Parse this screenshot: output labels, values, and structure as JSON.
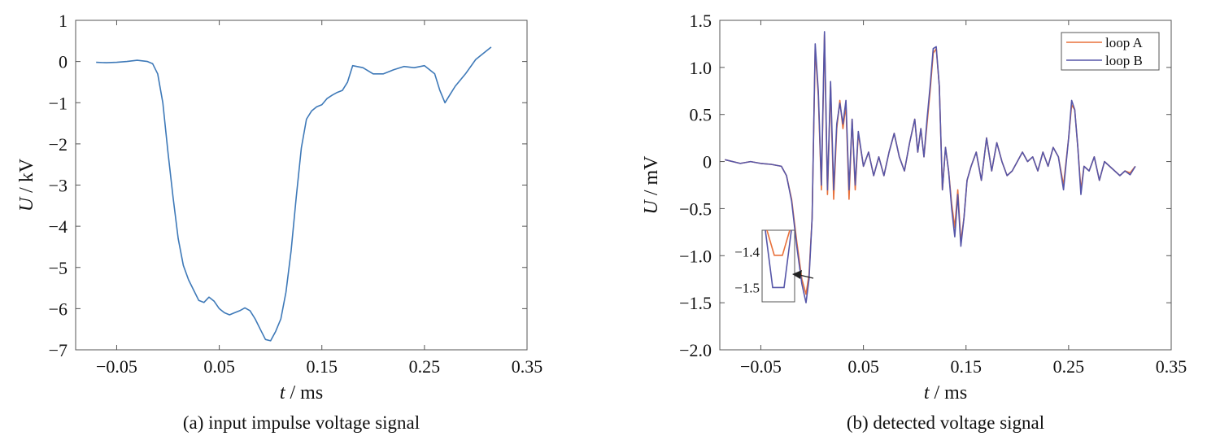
{
  "chart_data": [
    {
      "type": "line",
      "caption": "(a) input impulse voltage signal",
      "xlabel_var": "t",
      "xlabel_unit": " / ms",
      "ylabel_var": "U",
      "ylabel_unit": " / kV",
      "xlim": [
        -0.09,
        0.35
      ],
      "ylim": [
        -7,
        1
      ],
      "xticks": [
        -0.05,
        0.05,
        0.15,
        0.25,
        0.35
      ],
      "xtick_labels": [
        "−0.05",
        "0.05",
        "0.15",
        "0.25",
        "0.35"
      ],
      "yticks": [
        1,
        0,
        -1,
        -2,
        -3,
        -4,
        -5,
        -6,
        -7
      ],
      "ytick_labels": [
        "1",
        "0",
        "−1",
        "−2",
        "−3",
        "−4",
        "−5",
        "−6",
        "−7"
      ],
      "grid": false,
      "series": [
        {
          "color": "#3e79b8",
          "x": [
            -0.07,
            -0.06,
            -0.05,
            -0.04,
            -0.03,
            -0.02,
            -0.015,
            -0.01,
            -0.005,
            0.0,
            0.005,
            0.01,
            0.015,
            0.02,
            0.025,
            0.03,
            0.035,
            0.04,
            0.045,
            0.05,
            0.055,
            0.06,
            0.065,
            0.07,
            0.075,
            0.08,
            0.085,
            0.09,
            0.095,
            0.1,
            0.105,
            0.11,
            0.115,
            0.12,
            0.125,
            0.13,
            0.135,
            0.14,
            0.145,
            0.15,
            0.155,
            0.16,
            0.165,
            0.17,
            0.175,
            0.18,
            0.19,
            0.2,
            0.21,
            0.22,
            0.23,
            0.24,
            0.25,
            0.26,
            0.265,
            0.27,
            0.275,
            0.28,
            0.29,
            0.3,
            0.31,
            0.315
          ],
          "values": [
            -0.02,
            -0.03,
            -0.02,
            0.0,
            0.03,
            0.0,
            -0.05,
            -0.3,
            -1.0,
            -2.2,
            -3.3,
            -4.3,
            -4.95,
            -5.3,
            -5.55,
            -5.8,
            -5.85,
            -5.72,
            -5.82,
            -6.0,
            -6.1,
            -6.15,
            -6.1,
            -6.05,
            -5.98,
            -6.05,
            -6.25,
            -6.5,
            -6.75,
            -6.78,
            -6.55,
            -6.25,
            -5.6,
            -4.6,
            -3.3,
            -2.1,
            -1.4,
            -1.2,
            -1.1,
            -1.05,
            -0.9,
            -0.82,
            -0.75,
            -0.7,
            -0.5,
            -0.1,
            -0.15,
            -0.3,
            -0.3,
            -0.2,
            -0.12,
            -0.15,
            -0.1,
            -0.3,
            -0.7,
            -1.0,
            -0.8,
            -0.6,
            -0.3,
            0.05,
            0.25,
            0.35
          ]
        }
      ]
    },
    {
      "type": "line",
      "caption": "(b) detected voltage signal",
      "xlabel_var": "t",
      "xlabel_unit": " / ms",
      "ylabel_var": "U",
      "ylabel_unit": " / mV",
      "xlim": [
        -0.09,
        0.35
      ],
      "ylim": [
        -2.0,
        1.5
      ],
      "xticks": [
        -0.05,
        0.05,
        0.15,
        0.25,
        0.35
      ],
      "xtick_labels": [
        "−0.05",
        "0.05",
        "0.15",
        "0.25",
        "0.35"
      ],
      "yticks": [
        1.5,
        1.0,
        0.5,
        0,
        -0.5,
        -1.0,
        -1.5,
        -2.0
      ],
      "ytick_labels": [
        "1.5",
        "1.0",
        "0.5",
        "0",
        "−0.5",
        "−1.0",
        "−1.5",
        "−2.0"
      ],
      "grid": false,
      "legend_position": "top-right",
      "inset": {
        "ytick_labels": [
          "−1.4",
          "−1.5"
        ],
        "yticks": [
          -1.4,
          -1.5
        ],
        "ylim": [
          -1.34,
          -1.54
        ],
        "series_min": [
          -1.41,
          -1.5
        ]
      },
      "series": [
        {
          "name": "loop A",
          "color": "#e8703a",
          "x": [
            -0.085,
            -0.07,
            -0.06,
            -0.05,
            -0.04,
            -0.03,
            -0.025,
            -0.02,
            -0.015,
            -0.01,
            -0.006,
            -0.003,
            0.0,
            0.003,
            0.006,
            0.009,
            0.012,
            0.015,
            0.018,
            0.021,
            0.024,
            0.027,
            0.03,
            0.033,
            0.036,
            0.039,
            0.042,
            0.045,
            0.05,
            0.055,
            0.06,
            0.065,
            0.07,
            0.075,
            0.08,
            0.085,
            0.09,
            0.095,
            0.1,
            0.103,
            0.106,
            0.109,
            0.112,
            0.115,
            0.118,
            0.121,
            0.124,
            0.127,
            0.13,
            0.133,
            0.136,
            0.139,
            0.142,
            0.145,
            0.148,
            0.151,
            0.155,
            0.16,
            0.165,
            0.17,
            0.175,
            0.18,
            0.185,
            0.19,
            0.195,
            0.2,
            0.205,
            0.21,
            0.215,
            0.22,
            0.225,
            0.23,
            0.235,
            0.24,
            0.245,
            0.25,
            0.253,
            0.256,
            0.259,
            0.262,
            0.265,
            0.27,
            0.275,
            0.28,
            0.285,
            0.29,
            0.295,
            0.3,
            0.305,
            0.31,
            0.315
          ],
          "values": [
            0.02,
            -0.02,
            0.0,
            -0.02,
            -0.03,
            -0.05,
            -0.15,
            -0.4,
            -0.85,
            -1.25,
            -1.41,
            -1.2,
            -0.6,
            1.2,
            0.7,
            -0.3,
            1.35,
            -0.35,
            0.8,
            -0.4,
            0.35,
            0.65,
            0.35,
            0.6,
            -0.4,
            0.45,
            -0.3,
            0.3,
            -0.05,
            0.1,
            -0.15,
            0.05,
            -0.15,
            0.1,
            0.3,
            0.05,
            -0.1,
            0.2,
            0.45,
            0.1,
            0.35,
            0.05,
            0.4,
            0.75,
            1.15,
            1.2,
            0.8,
            -0.3,
            0.15,
            -0.1,
            -0.45,
            -0.7,
            -0.3,
            -0.85,
            -0.6,
            -0.2,
            -0.05,
            0.1,
            -0.2,
            0.25,
            -0.1,
            0.2,
            0.0,
            -0.15,
            -0.1,
            0.0,
            0.1,
            0.0,
            0.05,
            -0.1,
            0.1,
            -0.05,
            0.15,
            0.05,
            -0.25,
            0.25,
            0.6,
            0.55,
            0.15,
            -0.3,
            -0.05,
            -0.1,
            0.05,
            -0.2,
            0.0,
            -0.05,
            -0.1,
            -0.15,
            -0.1,
            -0.12,
            -0.05
          ]
        },
        {
          "name": "loop B",
          "color": "#5656a8",
          "x": [
            -0.085,
            -0.07,
            -0.06,
            -0.05,
            -0.04,
            -0.03,
            -0.025,
            -0.02,
            -0.015,
            -0.01,
            -0.006,
            -0.003,
            0.0,
            0.003,
            0.006,
            0.009,
            0.012,
            0.015,
            0.018,
            0.021,
            0.024,
            0.027,
            0.03,
            0.033,
            0.036,
            0.039,
            0.042,
            0.045,
            0.05,
            0.055,
            0.06,
            0.065,
            0.07,
            0.075,
            0.08,
            0.085,
            0.09,
            0.095,
            0.1,
            0.103,
            0.106,
            0.109,
            0.112,
            0.115,
            0.118,
            0.121,
            0.124,
            0.127,
            0.13,
            0.133,
            0.136,
            0.139,
            0.142,
            0.145,
            0.148,
            0.151,
            0.155,
            0.16,
            0.165,
            0.17,
            0.175,
            0.18,
            0.185,
            0.19,
            0.195,
            0.2,
            0.205,
            0.21,
            0.215,
            0.22,
            0.225,
            0.23,
            0.235,
            0.24,
            0.245,
            0.25,
            0.253,
            0.256,
            0.259,
            0.262,
            0.265,
            0.27,
            0.275,
            0.28,
            0.285,
            0.29,
            0.295,
            0.3,
            0.305,
            0.31,
            0.315
          ],
          "values": [
            0.02,
            -0.02,
            0.0,
            -0.02,
            -0.03,
            -0.05,
            -0.15,
            -0.42,
            -0.9,
            -1.3,
            -1.5,
            -1.25,
            -0.6,
            1.25,
            0.75,
            -0.25,
            1.38,
            -0.3,
            0.85,
            -0.3,
            0.4,
            0.62,
            0.4,
            0.65,
            -0.3,
            0.45,
            -0.25,
            0.32,
            -0.05,
            0.1,
            -0.15,
            0.05,
            -0.15,
            0.1,
            0.3,
            0.05,
            -0.1,
            0.2,
            0.45,
            0.1,
            0.35,
            0.05,
            0.45,
            0.8,
            1.2,
            1.22,
            0.8,
            -0.3,
            0.15,
            -0.1,
            -0.5,
            -0.8,
            -0.35,
            -0.9,
            -0.6,
            -0.2,
            -0.05,
            0.1,
            -0.2,
            0.25,
            -0.1,
            0.2,
            0.0,
            -0.15,
            -0.1,
            0.0,
            0.1,
            0.0,
            0.05,
            -0.1,
            0.1,
            -0.05,
            0.15,
            0.05,
            -0.3,
            0.25,
            0.65,
            0.55,
            0.15,
            -0.35,
            -0.05,
            -0.1,
            0.05,
            -0.2,
            0.0,
            -0.05,
            -0.1,
            -0.15,
            -0.1,
            -0.14,
            -0.05
          ]
        }
      ]
    }
  ]
}
